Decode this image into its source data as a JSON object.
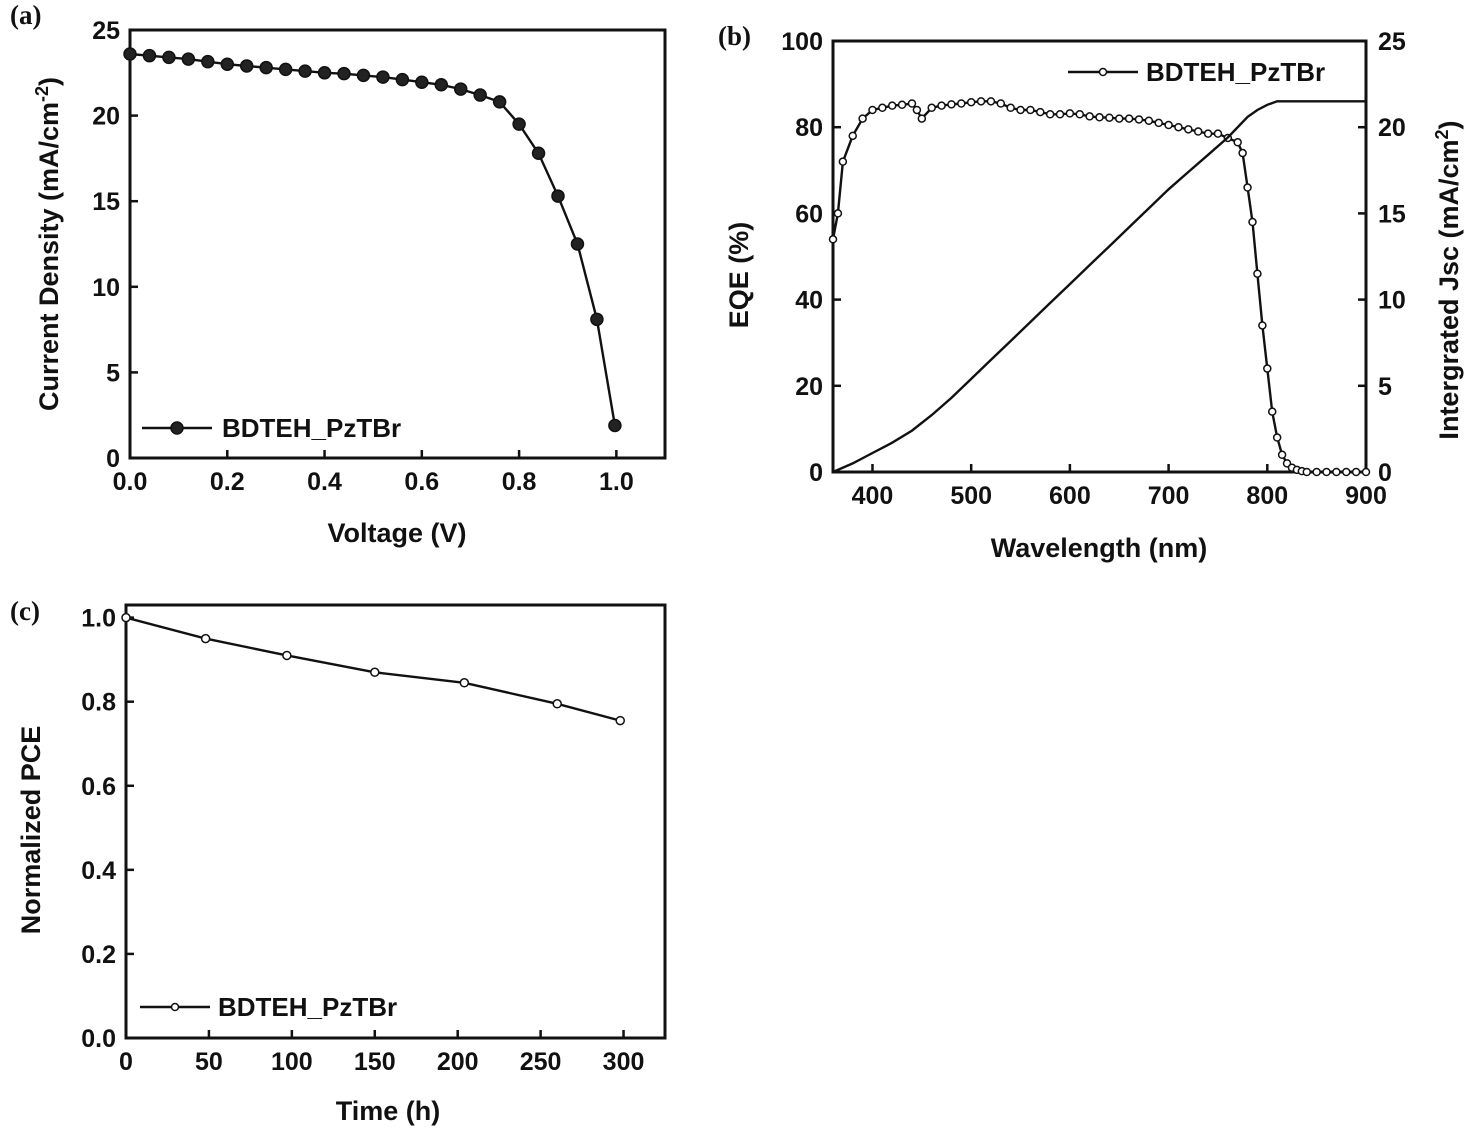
{
  "chart_data": [
    {
      "panel": "(a)",
      "type": "line",
      "xlabel": "Voltage (V)",
      "ylabel": "Current Density (mA/cm",
      "ylabel_sup": "-2",
      "ylabel_close": ")",
      "xlim": [
        0.0,
        1.1
      ],
      "ylim": [
        0,
        25
      ],
      "xticks": [
        0.0,
        0.2,
        0.4,
        0.6,
        0.8,
        1.0
      ],
      "xtick_labels": [
        "0.0",
        "0.2",
        "0.4",
        "0.6",
        "0.8",
        "1.0"
      ],
      "yticks": [
        0,
        5,
        10,
        15,
        20,
        25
      ],
      "ytick_labels": [
        "0",
        "5",
        "10",
        "15",
        "20",
        "25"
      ],
      "legend": "BDTEH_PzTBr",
      "legend_position": "bottom-left",
      "series": [
        {
          "name": "BDTEH_PzTBr",
          "x": [
            0.0,
            0.04,
            0.08,
            0.12,
            0.16,
            0.2,
            0.24,
            0.28,
            0.32,
            0.36,
            0.4,
            0.44,
            0.48,
            0.52,
            0.56,
            0.6,
            0.64,
            0.68,
            0.72,
            0.76,
            0.8,
            0.84,
            0.88,
            0.92,
            0.96,
            0.997
          ],
          "y": [
            23.6,
            23.5,
            23.4,
            23.3,
            23.15,
            23.0,
            22.9,
            22.8,
            22.7,
            22.6,
            22.5,
            22.45,
            22.35,
            22.25,
            22.1,
            21.95,
            21.8,
            21.55,
            21.2,
            20.8,
            19.5,
            17.8,
            15.3,
            12.5,
            8.1,
            1.9
          ]
        }
      ]
    },
    {
      "panel": "(b)",
      "type": "line",
      "xlabel": "Wavelength (nm)",
      "ylabel": "EQE (%)",
      "y2label": "Intergrated Jsc (mA/cm",
      "y2label_sup": "2",
      "y2label_close": ")",
      "xlim": [
        360,
        900
      ],
      "ylim": [
        0,
        100
      ],
      "y2lim": [
        0,
        25
      ],
      "xticks": [
        400,
        500,
        600,
        700,
        800,
        900
      ],
      "xtick_labels": [
        "400",
        "500",
        "600",
        "700",
        "800",
        "900"
      ],
      "yticks": [
        0,
        20,
        40,
        60,
        80,
        100
      ],
      "ytick_labels": [
        "0",
        "20",
        "40",
        "60",
        "80",
        "100"
      ],
      "y2ticks": [
        0,
        5,
        10,
        15,
        20,
        25
      ],
      "y2tick_labels": [
        "0",
        "5",
        "10",
        "15",
        "20",
        "25"
      ],
      "legend": "BDTEH_PzTBr",
      "legend_position": "top-right",
      "series": [
        {
          "name": "BDTEH_PzTBr",
          "axis": "left",
          "x": [
            360,
            365,
            370,
            380,
            390,
            400,
            410,
            420,
            430,
            440,
            445,
            450,
            460,
            470,
            480,
            490,
            500,
            510,
            520,
            530,
            540,
            550,
            560,
            570,
            580,
            590,
            600,
            610,
            620,
            630,
            640,
            650,
            660,
            670,
            680,
            690,
            700,
            710,
            720,
            730,
            740,
            750,
            760,
            770,
            775,
            780,
            785,
            790,
            795,
            800,
            805,
            810,
            815,
            820,
            825,
            830,
            835,
            840,
            850,
            860,
            870,
            880,
            890,
            900
          ],
          "y": [
            54,
            60,
            72,
            78,
            82,
            84,
            84.5,
            85,
            85.2,
            85.5,
            84,
            82,
            84.5,
            85,
            85.3,
            85.5,
            85.8,
            86,
            86,
            85.5,
            84.5,
            84,
            84,
            83.5,
            83,
            83,
            83.2,
            83,
            82.5,
            82.3,
            82.2,
            82,
            82,
            81.8,
            81.5,
            81,
            80.5,
            80,
            79.5,
            79,
            78.5,
            78.5,
            77.5,
            76.5,
            74,
            66,
            58,
            46,
            34,
            24,
            14,
            8,
            4,
            2,
            1,
            0.5,
            0.2,
            0,
            0,
            0,
            0,
            0,
            0,
            0
          ]
        },
        {
          "name": "Integrated Jsc",
          "axis": "right",
          "x": [
            360,
            380,
            400,
            420,
            440,
            460,
            480,
            500,
            520,
            540,
            560,
            580,
            600,
            620,
            640,
            660,
            680,
            700,
            720,
            740,
            760,
            780,
            790,
            800,
            810,
            820,
            840,
            860,
            880,
            900
          ],
          "y": [
            0,
            0.5,
            1.1,
            1.7,
            2.4,
            3.3,
            4.3,
            5.4,
            6.5,
            7.6,
            8.7,
            9.8,
            10.9,
            12.0,
            13.1,
            14.2,
            15.3,
            16.4,
            17.4,
            18.4,
            19.4,
            20.6,
            21.0,
            21.3,
            21.5,
            21.5,
            21.5,
            21.5,
            21.5,
            21.5
          ]
        }
      ]
    },
    {
      "panel": "(c)",
      "type": "line",
      "xlabel": "Time (h)",
      "ylabel": "Normalized PCE",
      "xlim": [
        0,
        325
      ],
      "ylim": [
        0.0,
        1.03
      ],
      "xticks": [
        0,
        50,
        100,
        150,
        200,
        250,
        300
      ],
      "xtick_labels": [
        "0",
        "50",
        "100",
        "150",
        "200",
        "250",
        "300"
      ],
      "yticks": [
        0.0,
        0.2,
        0.4,
        0.6,
        0.8,
        1.0
      ],
      "ytick_labels": [
        "0.0",
        "0.2",
        "0.4",
        "0.6",
        "0.8",
        "1.0"
      ],
      "legend": "BDTEH_PzTBr",
      "legend_position": "bottom-left",
      "series": [
        {
          "name": "BDTEH_PzTBr",
          "x": [
            0,
            48,
            97,
            150,
            204,
            260,
            298
          ],
          "y": [
            1.0,
            0.95,
            0.91,
            0.87,
            0.845,
            0.795,
            0.755
          ]
        }
      ]
    }
  ]
}
